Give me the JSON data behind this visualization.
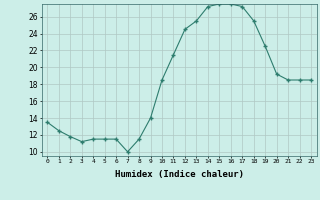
{
  "x": [
    0,
    1,
    2,
    3,
    4,
    5,
    6,
    7,
    8,
    9,
    10,
    11,
    12,
    13,
    14,
    15,
    16,
    17,
    18,
    19,
    20,
    21,
    22,
    23
  ],
  "y": [
    13.5,
    12.5,
    11.8,
    11.2,
    11.5,
    11.5,
    11.5,
    10.0,
    11.5,
    14.0,
    18.5,
    21.5,
    24.5,
    25.5,
    27.2,
    27.5,
    27.5,
    27.2,
    25.5,
    22.5,
    19.2,
    18.5,
    18.5,
    18.5
  ],
  "line_color": "#2e7d6e",
  "marker": "+",
  "marker_size": 3,
  "marker_linewidth": 1.0,
  "background_color": "#cceee8",
  "grid_color": "#b0c8c4",
  "xlabel": "Humidex (Indice chaleur)",
  "xlim": [
    -0.5,
    23.5
  ],
  "ylim": [
    9.5,
    27.5
  ],
  "yticks": [
    10,
    12,
    14,
    16,
    18,
    20,
    22,
    24,
    26
  ],
  "xticks": [
    0,
    1,
    2,
    3,
    4,
    5,
    6,
    7,
    8,
    9,
    10,
    11,
    12,
    13,
    14,
    15,
    16,
    17,
    18,
    19,
    20,
    21,
    22,
    23
  ],
  "xtick_labels": [
    "0",
    "1",
    "2",
    "3",
    "4",
    "5",
    "6",
    "7",
    "8",
    "9",
    "10",
    "11",
    "12",
    "13",
    "14",
    "15",
    "16",
    "17",
    "18",
    "19",
    "20",
    "21",
    "22",
    "23"
  ]
}
